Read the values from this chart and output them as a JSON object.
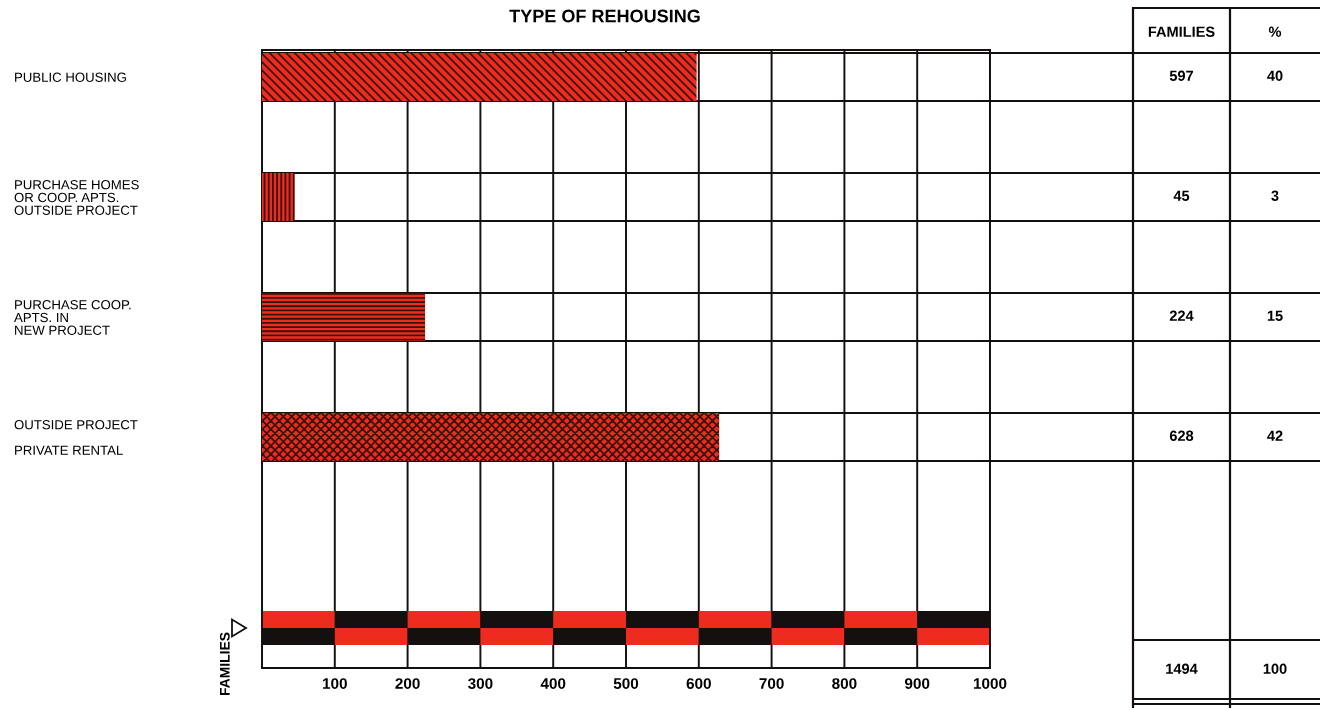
{
  "chart_data": {
    "type": "bar",
    "orientation": "horizontal",
    "title": "TYPE OF REHOUSING",
    "categories": [
      "PUBLIC HOUSING",
      "PURCHASE HOMES\nOR COOP. APTS.\nOUTSIDE PROJECT",
      "PURCHASE COOP.\nAPTS. IN\nNEW PROJECT",
      "OUTSIDE PROJECT\n\nPRIVATE RENTAL"
    ],
    "values": [
      597,
      45,
      224,
      628
    ],
    "color": "#ee2b1f",
    "xlim": [
      0,
      1000
    ],
    "xticks": [
      {
        "value": 0,
        "label": null
      },
      100,
      200,
      300,
      400,
      500,
      600,
      700,
      800,
      900,
      1000
    ],
    "grid": "x",
    "data_labels": true,
    "annotations": [
      "FAMILIES",
      "%",
      "40",
      "3",
      "15",
      "42",
      "1494",
      "100",
      "FAMILIES"
    ]
  }
}
